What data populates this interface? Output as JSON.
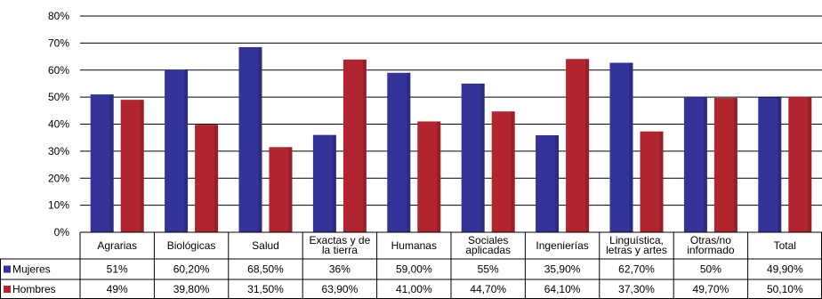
{
  "chart_data": {
    "type": "bar",
    "title": "",
    "xlabel": "",
    "ylabel": "",
    "ylim": [
      0,
      0.8
    ],
    "y_ticks": [
      "0%",
      "10%",
      "20%",
      "30%",
      "40%",
      "50%",
      "60%",
      "70%",
      "80%"
    ],
    "categories": [
      "Agrarias",
      "Biológicas",
      "Salud",
      "Exactas y de la tierra",
      "Humanas",
      "Sociales aplicadas",
      "Ingenierías",
      "Linguística, letras y artes",
      "Otras/no informado",
      "Total"
    ],
    "category_lines": [
      [
        "Agrarias"
      ],
      [
        "Biológicas"
      ],
      [
        "Salud"
      ],
      [
        "Exactas y de",
        "la tierra"
      ],
      [
        "Humanas"
      ],
      [
        "Sociales",
        "aplicadas"
      ],
      [
        "Ingenierías"
      ],
      [
        "Linguística,",
        "letras y artes"
      ],
      [
        "Otras/no",
        "informado"
      ],
      [
        "Total"
      ]
    ],
    "series": [
      {
        "name": "Mujeres",
        "color": "#333399",
        "values": [
          0.51,
          0.602,
          0.685,
          0.36,
          0.59,
          0.55,
          0.359,
          0.627,
          0.5,
          0.499
        ],
        "labels": [
          "51%",
          "60,20%",
          "68,50%",
          "36%",
          "59,00%",
          "55%",
          "35,90%",
          "62,70%",
          "50%",
          "49,90%"
        ]
      },
      {
        "name": "Hombres",
        "color": "#b2252f",
        "values": [
          0.49,
          0.398,
          0.315,
          0.639,
          0.41,
          0.447,
          0.641,
          0.373,
          0.497,
          0.501
        ],
        "labels": [
          "49%",
          "39,80%",
          "31,50%",
          "63,90%",
          "41,00%",
          "44,70%",
          "64,10%",
          "37,30%",
          "49,70%",
          "50,10%"
        ]
      }
    ],
    "grid": true,
    "legend": "table-left"
  }
}
